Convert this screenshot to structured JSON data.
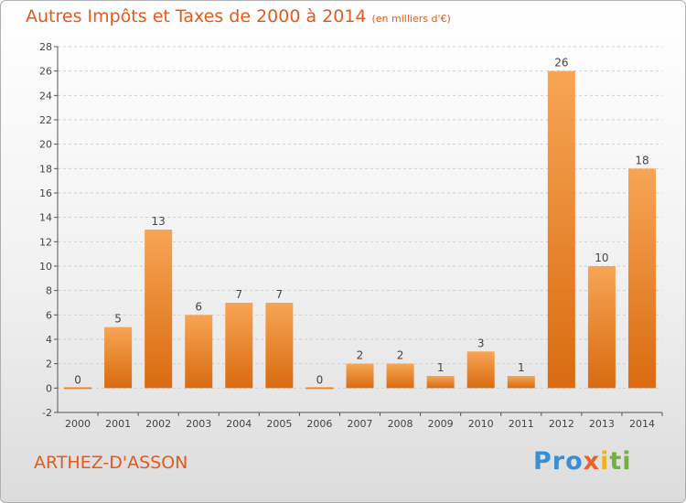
{
  "header": {
    "title": "Autres Impôts et Taxes de 2000 à 2014",
    "unit": "(en milliers d'€)"
  },
  "footer": {
    "commune": "ARTHEZ-D'ASSON",
    "logo": "Proxiti"
  },
  "colors": {
    "bar_top": "#f7a554",
    "bar_bottom": "#d96b10",
    "title": "#e35a1b",
    "grid": "#cfcfcf"
  },
  "chart_data": {
    "type": "bar",
    "title": "Autres Impôts et Taxes de 2000 à 2014",
    "subtitle": "(en milliers d'€)",
    "categories": [
      "2000",
      "2001",
      "2002",
      "2003",
      "2004",
      "2005",
      "2006",
      "2007",
      "2008",
      "2009",
      "2010",
      "2011",
      "2012",
      "2013",
      "2014"
    ],
    "values": [
      0,
      5,
      13,
      6,
      7,
      7,
      0,
      2,
      2,
      1,
      3,
      1,
      26,
      10,
      18
    ],
    "ylim": [
      -2,
      28
    ],
    "yticks": [
      -2,
      0,
      2,
      4,
      6,
      8,
      10,
      12,
      14,
      16,
      18,
      20,
      22,
      24,
      26,
      28
    ],
    "grid": true,
    "xlabel": "",
    "ylabel": ""
  }
}
